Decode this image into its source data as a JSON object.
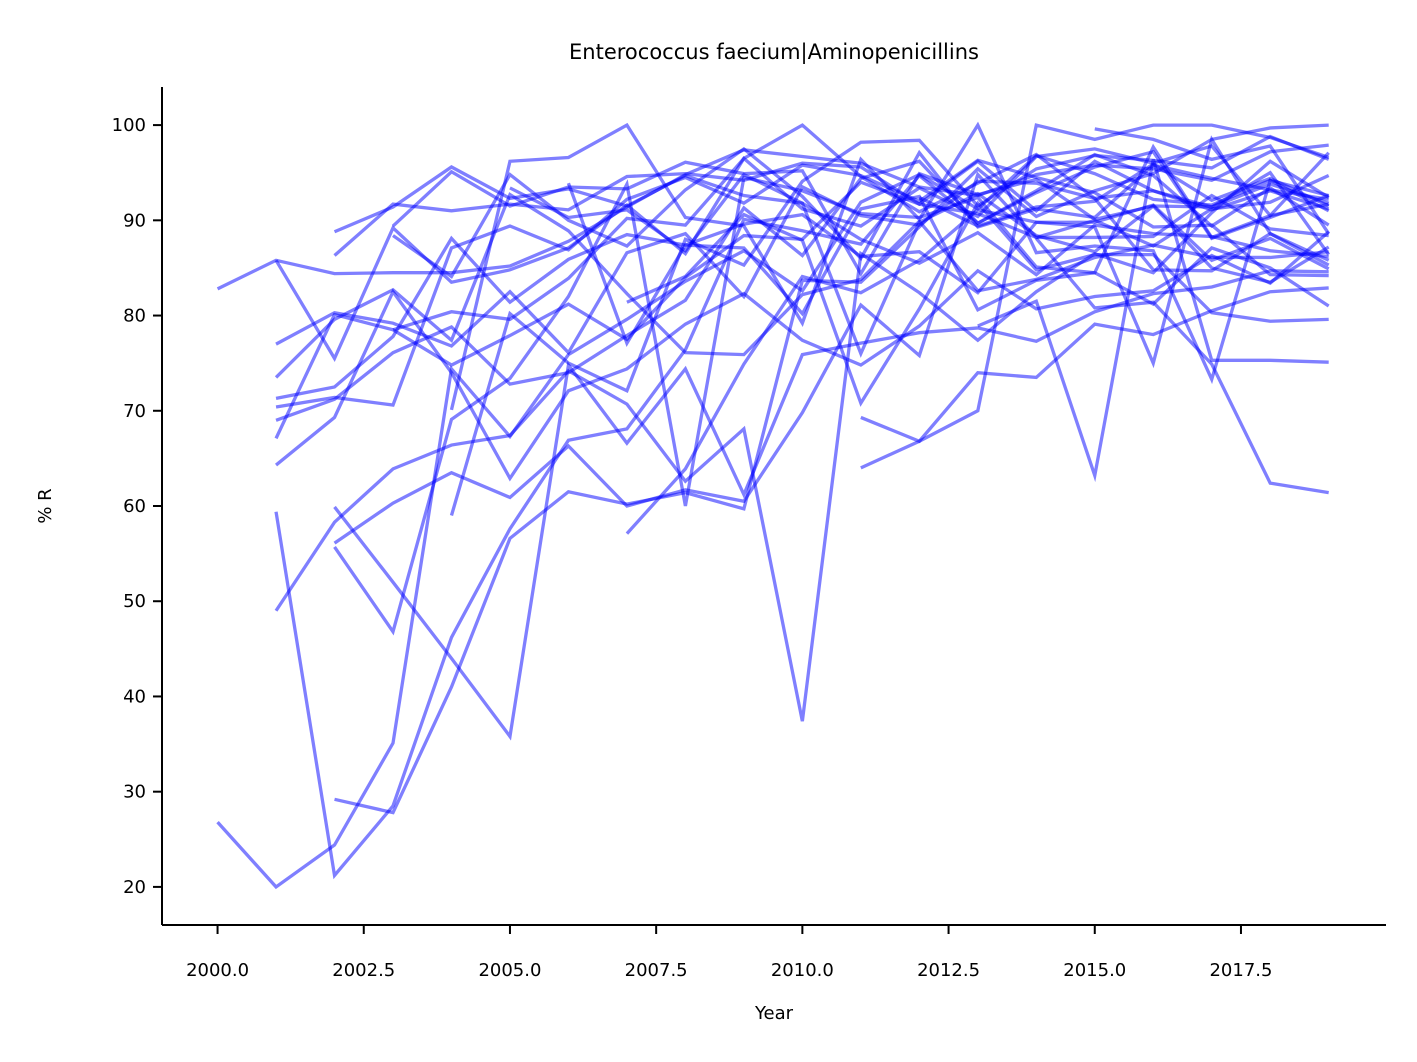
{
  "chart_data": {
    "type": "line",
    "title": "Enterococcus faecium|Aminopenicillins",
    "xlabel": "Year",
    "ylabel": "% R",
    "xlim": [
      1999.05,
      2019.98
    ],
    "ylim": [
      16.0,
      104.0
    ],
    "x_ticks": [
      2000,
      2002.5,
      2005,
      2007.5,
      2010,
      2012.5,
      2015,
      2017.5
    ],
    "x_tick_labels": [
      "2000.0",
      "2002.5",
      "2005.0",
      "2007.5",
      "2010.0",
      "2012.5",
      "2015.0",
      "2017.5"
    ],
    "y_ticks": [
      20,
      30,
      40,
      50,
      60,
      70,
      80,
      90,
      100
    ],
    "y_tick_labels": [
      "20",
      "30",
      "40",
      "50",
      "60",
      "70",
      "80",
      "90",
      "100"
    ],
    "grid": false,
    "legend": false,
    "line_color": "#0000ff",
    "line_opacity": 0.5,
    "series": [
      {
        "x": [
          2000,
          2001,
          2002,
          2003,
          2004,
          2005,
          2006,
          2007,
          2008,
          2009,
          2010,
          2011,
          2012,
          2013,
          2014,
          2015,
          2016,
          2017,
          2018,
          2019
        ],
        "values": [
          82.8,
          85.8,
          84.4,
          84.5,
          84.5,
          85.2,
          87.8,
          91.4,
          94.8,
          97.4,
          96.7,
          96.0,
          93.5,
          92.6,
          94.8,
          95.8,
          95.4,
          94.2,
          97.2,
          97.9
        ]
      },
      {
        "x": [
          2000,
          2001,
          2002,
          2003,
          2004,
          2005,
          2006,
          2007,
          2008,
          2009,
          2010,
          2011,
          2012,
          2013,
          2014,
          2015,
          2016,
          2017,
          2018,
          2019
        ],
        "values": [
          26.8,
          20.0,
          24.4,
          35.1,
          74.4,
          67.3,
          75.9,
          79.6,
          83.6,
          86.8,
          82.6,
          91.9,
          94.8,
          91.2,
          96.8,
          94.9,
          92.2,
          91.6,
          94.2,
          92.6
        ]
      },
      {
        "x": [
          2001,
          2002,
          2003,
          2004,
          2005,
          2006,
          2007,
          2008,
          2009,
          2010,
          2011,
          2012,
          2013,
          2014,
          2015,
          2016,
          2017,
          2018,
          2019
        ],
        "values": [
          85.8,
          75.5,
          89.2,
          83.5,
          84.8,
          87.1,
          91.6,
          86.5,
          96.5,
          91.2,
          89.4,
          93.4,
          90.4,
          96.7,
          97.5,
          96.0,
          97.8,
          90.5,
          97.1
        ]
      },
      {
        "x": [
          2001,
          2002,
          2003,
          2004,
          2005,
          2006,
          2007,
          2008,
          2009,
          2010,
          2011,
          2012,
          2013,
          2014,
          2015,
          2016,
          2017,
          2018,
          2019
        ],
        "values": [
          77.0,
          80.3,
          79.2,
          76.8,
          82.5,
          76.1,
          86.6,
          88.6,
          82.0,
          93.5,
          90.5,
          89.5,
          94.1,
          93.9,
          92.3,
          93.1,
          91.4,
          93.8,
          91.8
        ]
      },
      {
        "x": [
          2001,
          2002,
          2003,
          2004,
          2005,
          2006,
          2007,
          2008,
          2009,
          2010,
          2011,
          2012,
          2013,
          2014,
          2015,
          2016,
          2017,
          2018,
          2019
        ],
        "values": [
          73.5,
          79.6,
          82.7,
          77.4,
          92.7,
          88.9,
          82.3,
          76.1,
          75.9,
          82.2,
          83.8,
          89.9,
          82.6,
          83.8,
          86.1,
          87.4,
          86.1,
          86.1,
          86.7
        ]
      },
      {
        "x": [
          2001,
          2002,
          2003,
          2004,
          2005,
          2006,
          2007,
          2008,
          2009,
          2010,
          2011,
          2012,
          2013,
          2014,
          2015,
          2016,
          2017,
          2018,
          2019
        ],
        "values": [
          71.3,
          72.5,
          77.8,
          88.1,
          81.4,
          85.9,
          88.5,
          87.4,
          89.6,
          90.6,
          86.2,
          86.7,
          82.4,
          89.8,
          89.8,
          91.6,
          85.8,
          88.1,
          84.9
        ]
      },
      {
        "x": [
          2001,
          2002,
          2003,
          2004,
          2005,
          2006,
          2007,
          2008,
          2009,
          2010,
          2011,
          2012,
          2013,
          2014,
          2015,
          2016,
          2017,
          2018,
          2019
        ],
        "values": [
          70.4,
          71.4,
          70.6,
          87.1,
          89.4,
          86.9,
          92.2,
          94.5,
          91.8,
          95.8,
          94.7,
          92.0,
          96.3,
          94.5,
          92.9,
          89.3,
          89.5,
          84.3,
          84.2
        ]
      },
      {
        "x": [
          2001,
          2002,
          2003,
          2004,
          2005,
          2006,
          2007,
          2008,
          2009,
          2010,
          2011,
          2012,
          2013,
          2014,
          2015,
          2016,
          2017,
          2018,
          2019
        ],
        "values": [
          69.0,
          71.2,
          76.1,
          78.8,
          72.8,
          74.0,
          77.9,
          81.6,
          91.3,
          86.3,
          94.4,
          96.2,
          89.7,
          93.1,
          96.9,
          94.7,
          89.4,
          93.4,
          89.5
        ]
      },
      {
        "x": [
          2001,
          2002,
          2003,
          2004,
          2005,
          2006,
          2007,
          2008,
          2009,
          2010,
          2011,
          2012,
          2013,
          2014,
          2015,
          2016,
          2017,
          2018,
          2019
        ],
        "values": [
          67.1,
          80.1,
          78.5,
          74.8,
          77.9,
          81.2,
          77.5,
          84.0,
          88.4,
          88.0,
          94.0,
          91.7,
          96.2,
          91.0,
          96.2,
          93.1,
          91.1,
          93.1,
          91.2
        ]
      },
      {
        "x": [
          2001,
          2002,
          2003,
          2004,
          2005,
          2006,
          2007,
          2008,
          2009,
          2010,
          2011,
          2012,
          2013,
          2014,
          2015,
          2016,
          2017,
          2018,
          2019
        ],
        "values": [
          64.3,
          69.3,
          82.5,
          74.0,
          62.9,
          72.1,
          74.4,
          79.1,
          82.3,
          77.4,
          74.8,
          78.9,
          84.7,
          80.7,
          82.0,
          82.6,
          86.3,
          83.4,
          88.8
        ]
      },
      {
        "x": [
          2001,
          2002,
          2003,
          2004,
          2005,
          2006,
          2007,
          2008,
          2009,
          2010,
          2011,
          2012,
          2013,
          2014,
          2015,
          2016,
          2017,
          2018,
          2019
        ],
        "values": [
          59.4,
          21.2,
          28.5,
          46.2,
          57.6,
          66.9,
          68.1,
          76.4,
          90.1,
          88.9,
          87.5,
          94.7,
          89.7,
          92.9,
          95.6,
          97.2,
          88.1,
          90.3,
          92.6
        ]
      },
      {
        "x": [
          2001,
          2002,
          2003,
          2004,
          2005,
          2006,
          2007,
          2008,
          2009,
          2010,
          2011,
          2012,
          2013,
          2014,
          2015,
          2016,
          2017,
          2018,
          2019
        ],
        "values": [
          49.0,
          58.3,
          63.9,
          66.4,
          67.4,
          74.2,
          70.7,
          62.6,
          68.1,
          37.4,
          86.5,
          82.4,
          77.4,
          82.5,
          86.5,
          84.5,
          90.8,
          96.2,
          92.4
        ]
      },
      {
        "x": [
          2002,
          2003,
          2004,
          2005,
          2006,
          2007,
          2008,
          2009,
          2010,
          2011,
          2012,
          2013,
          2014,
          2015,
          2016,
          2017,
          2018,
          2019
        ],
        "values": [
          88.8,
          91.4,
          95.6,
          92.3,
          93.3,
          91.5,
          94.7,
          92.6,
          91.8,
          88.0,
          85.5,
          88.7,
          84.3,
          89.5,
          88.6,
          88.3,
          86.8,
          86.2
        ]
      },
      {
        "x": [
          2002,
          2003,
          2004,
          2005,
          2006,
          2007,
          2008,
          2009,
          2010,
          2011,
          2012,
          2013,
          2014,
          2015,
          2016,
          2017,
          2018,
          2019
        ],
        "values": [
          86.3,
          91.7,
          91.0,
          91.7,
          91.1,
          94.6,
          94.9,
          94.2,
          96.0,
          95.6,
          91.7,
          90.7,
          88.2,
          88.2,
          88.3,
          92.6,
          89.1,
          88.4
        ]
      },
      {
        "x": [
          2002,
          2003,
          2004,
          2005,
          2006,
          2007,
          2008,
          2009,
          2010,
          2011,
          2012,
          2013,
          2014,
          2015,
          2016,
          2017,
          2018,
          2019
        ],
        "values": [
          59.9,
          52.0,
          44.0,
          35.8,
          74.8,
          66.6,
          74.4,
          61.2,
          75.9,
          77.1,
          78.2,
          78.7,
          77.3,
          80.4,
          82.3,
          83.0,
          84.7,
          84.6
        ]
      },
      {
        "x": [
          2002,
          2003,
          2004,
          2005,
          2006,
          2007,
          2008,
          2009,
          2010,
          2011,
          2012,
          2013,
          2014,
          2015,
          2016,
          2017,
          2018,
          2019
        ],
        "values": [
          56.1,
          60.3,
          63.5,
          60.9,
          66.3,
          60.0,
          61.7,
          60.5,
          69.8,
          81.1,
          75.8,
          94.8,
          88.2,
          90.0,
          87.3,
          91.2,
          91.9,
          94.7
        ]
      },
      {
        "x": [
          2002,
          2003,
          2004,
          2005,
          2006,
          2007,
          2008,
          2009,
          2010,
          2011,
          2012,
          2013,
          2014,
          2015,
          2016,
          2017,
          2018,
          2019
        ],
        "values": [
          55.7,
          46.8,
          69.1,
          73.4,
          82.0,
          93.8,
          60.0,
          94.5,
          93.1,
          90.7,
          90.3,
          92.4,
          85.1,
          84.5,
          81.2,
          87.1,
          85.0,
          81.0
        ]
      },
      {
        "x": [
          2002,
          2003,
          2004,
          2005,
          2006,
          2007,
          2008,
          2009,
          2010,
          2011,
          2012,
          2013,
          2014,
          2015,
          2016,
          2017,
          2018,
          2019
        ],
        "values": [
          29.2,
          27.8,
          41.0,
          56.6,
          61.5,
          60.2,
          61.4,
          59.7,
          83.7,
          83.5,
          89.3,
          95.4,
          90.4,
          93.1,
          94.9,
          98.5,
          99.7,
          100.0
        ]
      },
      {
        "x": [
          2003,
          2004,
          2005,
          2006,
          2007,
          2008,
          2009,
          2010,
          2011,
          2012,
          2013,
          2014,
          2015,
          2016,
          2017,
          2018,
          2019
        ],
        "values": [
          88.4,
          84.1,
          94.8,
          90.0,
          87.3,
          93.2,
          97.5,
          92.5,
          86.0,
          97.1,
          89.3,
          91.2,
          90.3,
          95.8,
          94.4,
          93.2,
          92.2
        ]
      },
      {
        "x": [
          2003,
          2004,
          2005,
          2006,
          2007,
          2008,
          2009,
          2010,
          2011,
          2012,
          2013,
          2014,
          2015,
          2016,
          2017,
          2018,
          2019
        ],
        "values": [
          89.4,
          95.1,
          91.5,
          93.5,
          93.3,
          96.1,
          94.9,
          95.2,
          84.4,
          94.9,
          92.7,
          94.3,
          90.1,
          91.5,
          91.4,
          95.0,
          86.4
        ]
      },
      {
        "x": [
          2003,
          2004,
          2005,
          2006,
          2007,
          2008,
          2009,
          2010,
          2011,
          2012,
          2013,
          2014,
          2015,
          2016,
          2017,
          2018,
          2019
        ],
        "values": [
          78.5,
          80.4,
          79.6,
          83.9,
          90.2,
          89.5,
          96.5,
          100.0,
          94.6,
          90.9,
          93.9,
          96.9,
          92.3,
          84.8,
          84.7,
          88.6,
          85.8
        ]
      },
      {
        "x": [
          2004,
          2005,
          2006,
          2007,
          2008,
          2009,
          2010,
          2011,
          2012,
          2013,
          2014,
          2015,
          2016,
          2017,
          2018,
          2019
        ],
        "values": [
          59.0,
          80.2,
          75.0,
          72.1,
          88.0,
          85.3,
          94.1,
          98.2,
          98.4,
          91.5,
          95.4,
          96.8,
          96.3,
          95.5,
          98.8,
          96.4
        ]
      },
      {
        "x": [
          2004,
          2005,
          2006,
          2007,
          2008,
          2009,
          2010,
          2011,
          2012,
          2013,
          2014,
          2015,
          2016,
          2017,
          2018,
          2019
        ],
        "values": [
          70.1,
          96.2,
          96.6,
          100.0,
          90.3,
          89.4,
          79.2,
          96.4,
          90.1,
          100.0,
          86.6,
          87.3,
          86.8,
          73.3,
          94.2,
          91.0
        ]
      },
      {
        "x": [
          2005,
          2006,
          2007,
          2008,
          2009,
          2010,
          2011,
          2012,
          2013,
          2014,
          2015,
          2016,
          2017,
          2018,
          2019
        ],
        "values": [
          93.4,
          90.3,
          91.1,
          86.8,
          94.8,
          91.8,
          76.0,
          89.8,
          92.8,
          88.4,
          86.7,
          91.5,
          85.0,
          83.5,
          87.2
        ]
      },
      {
        "x": [
          2006,
          2007,
          2008,
          2009,
          2010,
          2011,
          2012,
          2013,
          2014,
          2015,
          2016,
          2017,
          2018,
          2019
        ],
        "values": [
          93.9,
          77.1,
          87.4,
          87.1,
          80.2,
          91.2,
          92.5,
          80.6,
          83.7,
          84.5,
          97.7,
          88.2,
          90.5,
          91.7
        ]
      },
      {
        "x": [
          2007,
          2008,
          2009,
          2010,
          2011,
          2012,
          2013,
          2014,
          2015,
          2016,
          2017,
          2018,
          2019
        ],
        "values": [
          57.1,
          63.9,
          74.9,
          84.1,
          82.4,
          85.8,
          91.1,
          89.8,
          89.3,
          75.0,
          98.5,
          88.6,
          85.3
        ]
      },
      {
        "x": [
          2007,
          2008,
          2009,
          2010,
          2011,
          2012,
          2013,
          2014,
          2015,
          2016,
          2017,
          2018,
          2019
        ],
        "values": [
          81.4,
          84.1,
          90.6,
          87.9,
          70.8,
          80.7,
          91.8,
          84.8,
          86.4,
          86.4,
          80.3,
          79.4,
          79.6
        ]
      },
      {
        "x": [
          2011,
          2012,
          2013,
          2014,
          2015,
          2016,
          2017,
          2018,
          2019
        ],
        "values": [
          64.0,
          66.8,
          70.0,
          100.0,
          98.5,
          100.0,
          100.0,
          98.7,
          96.6
        ]
      },
      {
        "x": [
          2011,
          2012,
          2013,
          2014,
          2015,
          2016,
          2017,
          2018,
          2019
        ],
        "values": [
          69.3,
          66.8,
          74.0,
          73.5,
          79.1,
          78.0,
          80.5,
          82.5,
          82.9
        ]
      },
      {
        "x": [
          2012,
          2013,
          2014,
          2015,
          2016,
          2017,
          2018,
          2019
        ],
        "values": [
          92.4,
          89.4,
          91.4,
          92.0,
          95.9,
          92.1,
          94.4,
          91.5
        ]
      },
      {
        "x": [
          2013,
          2014,
          2015,
          2016,
          2017,
          2018,
          2019
        ],
        "values": [
          78.9,
          81.5,
          63.2,
          96.4,
          75.3,
          75.3,
          75.1
        ]
      },
      {
        "x": [
          2014,
          2015,
          2016,
          2017,
          2018,
          2019
        ],
        "values": [
          88.1,
          80.8,
          81.4,
          74.9,
          62.4,
          61.4
        ]
      },
      {
        "x": [
          2015,
          2016,
          2017,
          2018,
          2019
        ],
        "values": [
          99.6,
          98.5,
          96.4,
          97.8,
          88.6
        ]
      }
    ]
  }
}
